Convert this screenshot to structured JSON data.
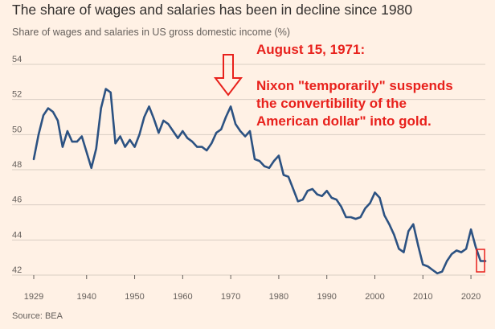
{
  "title": "The share of wages and salaries has been in decline since 1980",
  "subtitle": "Share of wages and salaries in US gross domestic income (%)",
  "source": "Source: BEA",
  "annotation": {
    "date": "August 15, 1971:",
    "lines": [
      "Nixon \"temporarily\"  suspends",
      "the convertibility of the",
      "American dollar\" into gold."
    ]
  },
  "colors": {
    "background": "#fff1e5",
    "line": "#2c5282",
    "annotation": "#e8211c",
    "grid": "#d9cec4"
  },
  "chart_data": {
    "type": "line",
    "title": "The share of wages and salaries has been in decline since 1980",
    "ylabel": "Share of wages and salaries in US gross domestic income (%)",
    "xlim": [
      1929,
      2023
    ],
    "ylim": [
      42,
      54
    ],
    "yticks": [
      42,
      44,
      46,
      48,
      50,
      52,
      54
    ],
    "xticks": [
      1929,
      1940,
      1950,
      1960,
      1970,
      1980,
      1990,
      2000,
      2010,
      2020
    ],
    "grid": true,
    "x": [
      1929,
      1930,
      1931,
      1932,
      1933,
      1934,
      1935,
      1936,
      1937,
      1938,
      1939,
      1940,
      1941,
      1942,
      1943,
      1944,
      1945,
      1946,
      1947,
      1948,
      1949,
      1950,
      1951,
      1952,
      1953,
      1954,
      1955,
      1956,
      1957,
      1958,
      1959,
      1960,
      1961,
      1962,
      1963,
      1964,
      1965,
      1966,
      1967,
      1968,
      1969,
      1970,
      1971,
      1972,
      1973,
      1974,
      1975,
      1976,
      1977,
      1978,
      1979,
      1980,
      1981,
      1982,
      1983,
      1984,
      1985,
      1986,
      1987,
      1988,
      1989,
      1990,
      1991,
      1992,
      1993,
      1994,
      1995,
      1996,
      1997,
      1998,
      1999,
      2000,
      2001,
      2002,
      2003,
      2004,
      2005,
      2006,
      2007,
      2008,
      2009,
      2010,
      2011,
      2012,
      2013,
      2014,
      2015,
      2016,
      2017,
      2018,
      2019,
      2020,
      2021,
      2022,
      2023
    ],
    "y": [
      48.6,
      50.0,
      51.1,
      51.5,
      51.3,
      50.8,
      49.3,
      50.2,
      49.6,
      49.6,
      49.9,
      49.0,
      48.1,
      49.2,
      51.5,
      52.6,
      52.4,
      49.5,
      49.9,
      49.3,
      49.7,
      49.3,
      50.0,
      51.0,
      51.6,
      50.9,
      50.1,
      50.8,
      50.6,
      50.2,
      49.8,
      50.2,
      49.8,
      49.6,
      49.3,
      49.3,
      49.1,
      49.5,
      50.1,
      50.3,
      51.0,
      51.6,
      50.6,
      50.2,
      49.9,
      50.2,
      48.6,
      48.5,
      48.2,
      48.1,
      48.5,
      48.8,
      47.7,
      47.6,
      46.9,
      46.2,
      46.3,
      46.8,
      46.9,
      46.6,
      46.5,
      46.8,
      46.4,
      46.3,
      45.9,
      45.3,
      45.3,
      45.2,
      45.3,
      45.8,
      46.1,
      46.7,
      46.4,
      45.4,
      44.9,
      44.3,
      43.5,
      43.3,
      44.5,
      44.9,
      43.7,
      42.6,
      42.5,
      42.3,
      42.1,
      42.2,
      42.8,
      43.2,
      43.4,
      43.3,
      43.5,
      44.6,
      43.6,
      42.8,
      42.8
    ]
  }
}
